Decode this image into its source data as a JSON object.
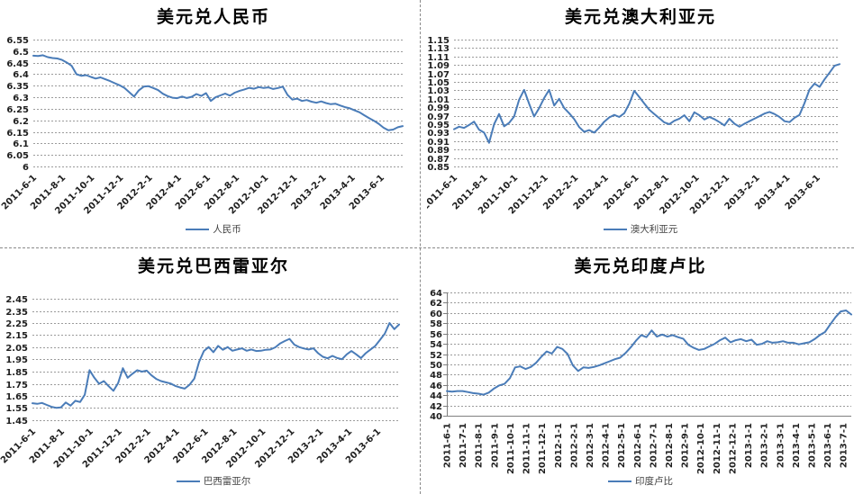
{
  "page": {
    "background": "#ffffff",
    "divider_style": "dashed-gray"
  },
  "chart_data": [
    {
      "id": "usd-cny",
      "type": "line",
      "title": "美元兑人民币",
      "legend": "人民币",
      "series_color": "#4a7cb8",
      "grid_color": "#9b9b9b",
      "text_color": "#1f1f1f",
      "ylim": [
        6,
        6.55
      ],
      "ytick_step": 0.05,
      "ytick_decimals": 2,
      "ytick_trim_zeros": true,
      "ytick_labels": [
        "6.55",
        "6.5",
        "6.45",
        "6.4",
        "6.35",
        "6.3",
        "6.25",
        "6.2",
        "6.15",
        "6.1",
        "6.05",
        "6"
      ],
      "x_tick_labels": [
        "2011-6-1",
        "2011-8-1",
        "2011-10-1",
        "2011-12-1",
        "2012-2-1",
        "2012-4-1",
        "2012-6-1",
        "2012-8-1",
        "2012-10-1",
        "2012-12-1",
        "2013-2-1",
        "2013-4-1",
        "2013-6-1"
      ],
      "x_tick_interval_months": 2,
      "months_total": 25.5,
      "grid": "horizontal-dashed",
      "legend_position": "bottom",
      "values": [
        6.48,
        6.479,
        6.482,
        6.474,
        6.47,
        6.468,
        6.462,
        6.45,
        6.436,
        6.4,
        6.393,
        6.396,
        6.388,
        6.381,
        6.386,
        6.378,
        6.37,
        6.361,
        6.352,
        6.34,
        6.322,
        6.303,
        6.33,
        6.346,
        6.348,
        6.34,
        6.331,
        6.315,
        6.305,
        6.298,
        6.296,
        6.303,
        6.297,
        6.302,
        6.314,
        6.306,
        6.318,
        6.284,
        6.3,
        6.308,
        6.316,
        6.307,
        6.32,
        6.328,
        6.334,
        6.341,
        6.337,
        6.344,
        6.34,
        6.343,
        6.336,
        6.34,
        6.346,
        6.31,
        6.29,
        6.294,
        6.284,
        6.288,
        6.281,
        6.276,
        6.282,
        6.275,
        6.27,
        6.272,
        6.264,
        6.257,
        6.252,
        6.243,
        6.235,
        6.222,
        6.21,
        6.198,
        6.185,
        6.168,
        6.157,
        6.16,
        6.17,
        6.175
      ]
    },
    {
      "id": "usd-aud",
      "type": "line",
      "title": "美元兑澳大利亚元",
      "legend": "澳大利亚元",
      "series_color": "#4a7cb8",
      "grid_color": "#9b9b9b",
      "text_color": "#1f1f1f",
      "ylim": [
        0.85,
        1.15
      ],
      "ytick_step": 0.02,
      "ytick_decimals": 2,
      "ytick_trim_zeros": false,
      "ytick_labels": [
        "1.15",
        "1.13",
        "1.11",
        "1.09",
        "1.07",
        "1.05",
        "1.03",
        "1.01",
        "0.99",
        "0.97",
        "0.95",
        "0.93",
        "0.91",
        "0.89",
        "0.87",
        "0.85"
      ],
      "x_tick_labels": [
        "2011-6-1",
        "2011-8-1",
        "2011-10-1",
        "2011-12-1",
        "2012-2-1",
        "2012-4-1",
        "2012-6-1",
        "2012-8-1",
        "2012-10-1",
        "2012-12-1",
        "2013-2-1",
        "2013-4-1",
        "2013-6-1"
      ],
      "x_tick_interval_months": 2,
      "months_total": 25.5,
      "grid": "horizontal-dashed",
      "legend_position": "bottom",
      "values": [
        0.938,
        0.944,
        0.941,
        0.948,
        0.956,
        0.937,
        0.93,
        0.906,
        0.95,
        0.974,
        0.945,
        0.953,
        0.968,
        1.008,
        1.031,
        0.998,
        0.968,
        0.988,
        1.012,
        1.031,
        0.994,
        1.01,
        0.988,
        0.976,
        0.962,
        0.943,
        0.932,
        0.936,
        0.93,
        0.942,
        0.956,
        0.966,
        0.972,
        0.967,
        0.976,
        0.998,
        1.029,
        1.014,
        0.999,
        0.984,
        0.974,
        0.964,
        0.954,
        0.95,
        0.958,
        0.963,
        0.971,
        0.957,
        0.978,
        0.971,
        0.961,
        0.967,
        0.962,
        0.955,
        0.947,
        0.963,
        0.951,
        0.944,
        0.951,
        0.957,
        0.963,
        0.969,
        0.975,
        0.979,
        0.974,
        0.967,
        0.957,
        0.955,
        0.965,
        0.972,
        1.0,
        1.032,
        1.046,
        1.038,
        1.056,
        1.072,
        1.088,
        1.092
      ]
    },
    {
      "id": "usd-brl",
      "type": "line",
      "title": "美元兑巴西雷亚尔",
      "legend": "巴西雷亚尔",
      "series_color": "#4a7cb8",
      "grid_color": "#9b9b9b",
      "text_color": "#1f1f1f",
      "ylim": [
        1.45,
        2.45
      ],
      "ytick_step": 0.1,
      "ytick_decimals": 2,
      "ytick_trim_zeros": false,
      "ytick_labels": [
        "2.45",
        "2.35",
        "2.25",
        "2.15",
        "2.05",
        "1.95",
        "1.85",
        "1.75",
        "1.65",
        "1.55",
        "1.45"
      ],
      "x_tick_labels": [
        "2011-6-1",
        "2011-8-1",
        "2011-10-1",
        "2011-12-1",
        "2012-2-1",
        "2012-4-1",
        "2012-6-1",
        "2012-8-1",
        "2012-10-1",
        "2012-12-1",
        "2013-2-1",
        "2013-4-1",
        "2013-6-1"
      ],
      "x_tick_interval_months": 2,
      "months_total": 25.5,
      "grid": "horizontal-dashed",
      "legend_position": "bottom",
      "values": [
        1.59,
        1.585,
        1.592,
        1.576,
        1.56,
        1.552,
        1.556,
        1.596,
        1.57,
        1.61,
        1.6,
        1.66,
        1.862,
        1.8,
        1.75,
        1.772,
        1.73,
        1.692,
        1.755,
        1.878,
        1.8,
        1.832,
        1.862,
        1.85,
        1.858,
        1.82,
        1.79,
        1.772,
        1.762,
        1.752,
        1.732,
        1.72,
        1.71,
        1.742,
        1.792,
        1.93,
        2.02,
        2.052,
        2.01,
        2.062,
        2.03,
        2.052,
        2.022,
        2.032,
        2.042,
        2.022,
        2.032,
        2.02,
        2.022,
        2.03,
        2.032,
        2.05,
        2.082,
        2.102,
        2.12,
        2.072,
        2.052,
        2.04,
        2.032,
        2.042,
        2.002,
        1.972,
        1.96,
        1.98,
        1.962,
        1.952,
        1.992,
        2.02,
        1.992,
        1.962,
        2.002,
        2.032,
        2.062,
        2.112,
        2.162,
        2.25,
        2.2,
        2.238
      ]
    },
    {
      "id": "usd-inr",
      "type": "line",
      "title": "美元兑印度卢比",
      "legend": "印度卢比",
      "series_color": "#4a7cb8",
      "grid_color": "#9b9b9b",
      "text_color": "#1f1f1f",
      "ylim": [
        40,
        64
      ],
      "ytick_step": 2,
      "ytick_decimals": 0,
      "ytick_trim_zeros": false,
      "ytick_labels": [
        "64",
        "62",
        "60",
        "58",
        "56",
        "54",
        "52",
        "50",
        "48",
        "46",
        "44",
        "42",
        "40"
      ],
      "x_tick_labels": [
        "2011-6-1",
        "2011-7-1",
        "2011-8-1",
        "2011-9-1",
        "2011-10-1",
        "2011-11-1",
        "2011-12-1",
        "2012-1-1",
        "2012-2-1",
        "2012-3-1",
        "2012-4-1",
        "2012-5-1",
        "2012-6-1",
        "2012-7-1",
        "2012-8-1",
        "2012-9-1",
        "2012-10-1",
        "2012-11-1",
        "2012-12-1",
        "2013-1-1",
        "2013-2-1",
        "2013-3-1",
        "2013-4-1",
        "2013-5-1",
        "2013-6-1",
        "2013-7-1"
      ],
      "x_tick_interval_months": 1,
      "months_total": 25.5,
      "grid": "horizontal-dashed",
      "axis_spines": true,
      "legend_position": "bottom",
      "values": [
        44.8,
        44.7,
        44.8,
        44.8,
        44.6,
        44.4,
        44.3,
        44.1,
        44.5,
        45.3,
        45.9,
        46.2,
        47.3,
        49.4,
        49.6,
        49.1,
        49.5,
        50.3,
        51.5,
        52.5,
        52.1,
        53.4,
        53.0,
        52.0,
        49.8,
        48.7,
        49.4,
        49.3,
        49.5,
        49.8,
        50.2,
        50.6,
        51.0,
        51.3,
        52.2,
        53.3,
        54.6,
        55.7,
        55.3,
        56.6,
        55.4,
        55.8,
        55.4,
        55.7,
        55.3,
        55.0,
        53.8,
        53.2,
        52.8,
        53.0,
        53.5,
        54.0,
        54.7,
        55.2,
        54.3,
        54.7,
        54.9,
        54.5,
        54.8,
        53.8,
        54.0,
        54.5,
        54.2,
        54.3,
        54.5,
        54.2,
        54.2,
        53.9,
        54.1,
        54.3,
        54.9,
        55.7,
        56.3,
        57.8,
        59.2,
        60.3,
        60.5,
        59.7
      ]
    }
  ]
}
